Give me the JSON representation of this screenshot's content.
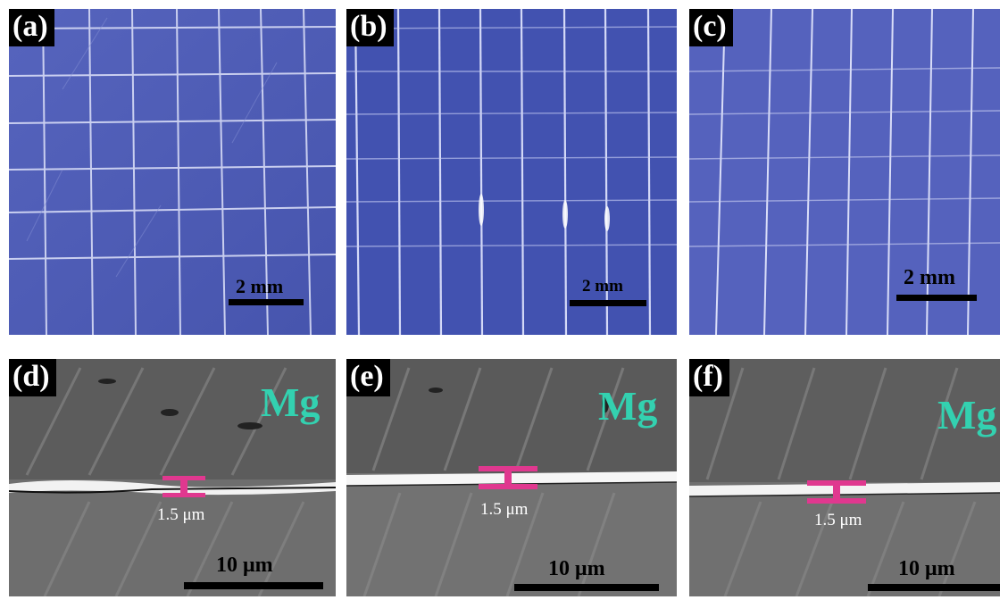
{
  "panels_top": [
    {
      "label": "(a)",
      "scale": "2 mm"
    },
    {
      "label": "(b)",
      "scale": "2 mm"
    },
    {
      "label": "(c)",
      "scale": "2 mm"
    }
  ],
  "panels_bottom": [
    {
      "label": "(d)",
      "material": "Mg",
      "thickness": "1.5 μm",
      "scale": "10 μm"
    },
    {
      "label": "(e)",
      "material": "Mg",
      "thickness": "1.5 μm",
      "scale": "10 μm"
    },
    {
      "label": "(f)",
      "material": "Mg",
      "thickness": "1.5 μm",
      "scale": "10 μm"
    }
  ],
  "colors": {
    "optical_blue": "#4a58b3",
    "grid_line": "#d8dcf5",
    "sem_gray": "#6e6e6e",
    "material_label": "#33d1b0",
    "thickness_marker": "#e0388f"
  }
}
